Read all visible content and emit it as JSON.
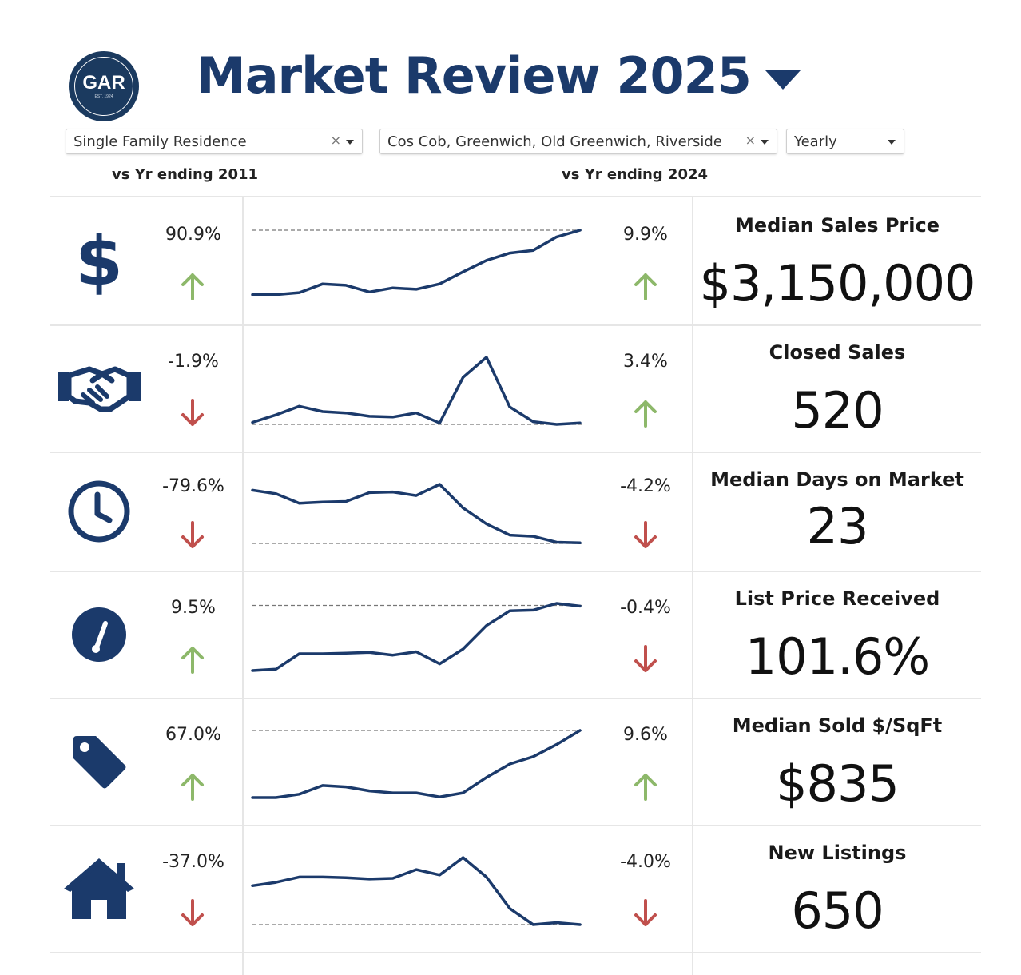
{
  "header": {
    "logo_text": "GAR",
    "logo_subtext": "EST. 1924",
    "title": "Market Review  2025"
  },
  "filters": {
    "property_type": "Single Family Residence",
    "areas": "Cos Cob, Greenwich, Old Greenwich, Riverside",
    "period": "Yearly",
    "clear_symbol": "×"
  },
  "compare": {
    "left_label": "vs Yr ending 2011",
    "right_label": "vs Yr ending 2024"
  },
  "colors": {
    "navy": "#1b3a6b",
    "up_green": "#8db86a",
    "down_red": "#c0504d"
  },
  "metrics": [
    {
      "label": "Median Sales Price",
      "value": "$3,150,000",
      "change_vs_2011": "90.9%",
      "dir_vs_2011": "up",
      "change_vs_2024": "9.9%",
      "dir_vs_2024": "up",
      "icon": "dollar-icon",
      "trend": [
        0.04,
        0.04,
        0.07,
        0.2,
        0.18,
        0.08,
        0.14,
        0.12,
        0.2,
        0.38,
        0.55,
        0.66,
        0.7,
        0.9,
        1.0
      ],
      "ref": 1.0
    },
    {
      "label": "Closed Sales",
      "value": "520",
      "change_vs_2011": "-1.9%",
      "dir_vs_2011": "down",
      "change_vs_2024": "3.4%",
      "dir_vs_2024": "up",
      "icon": "handshake-icon",
      "trend": [
        0.03,
        0.14,
        0.27,
        0.19,
        0.17,
        0.12,
        0.11,
        0.17,
        0.02,
        0.7,
        1.0,
        0.26,
        0.04,
        0.0,
        0.02
      ],
      "ref": 0.0
    },
    {
      "label": "Median Days on Market",
      "value": "23",
      "change_vs_2011": "-79.6%",
      "dir_vs_2011": "down",
      "change_vs_2024": "-4.2%",
      "dir_vs_2024": "down",
      "icon": "clock-icon",
      "trend": [
        0.9,
        0.84,
        0.68,
        0.7,
        0.71,
        0.86,
        0.87,
        0.81,
        1.0,
        0.6,
        0.33,
        0.14,
        0.12,
        0.02,
        0.01
      ],
      "ref": 0.0
    },
    {
      "label": "List Price Received",
      "value": "101.6%",
      "change_vs_2011": "9.5%",
      "dir_vs_2011": "up",
      "change_vs_2024": "-0.4%",
      "dir_vs_2024": "down",
      "icon": "gauge-icon",
      "trend": [
        0.0,
        0.02,
        0.25,
        0.25,
        0.26,
        0.27,
        0.23,
        0.28,
        0.1,
        0.32,
        0.67,
        0.89,
        0.9,
        1.0,
        0.96
      ],
      "ref": 0.97
    },
    {
      "label": "Median Sold $/SqFt",
      "value": "$835",
      "change_vs_2011": "67.0%",
      "dir_vs_2011": "up",
      "change_vs_2024": "9.6%",
      "dir_vs_2024": "up",
      "icon": "price-tag-icon",
      "trend": [
        0.0,
        0.0,
        0.05,
        0.18,
        0.16,
        0.1,
        0.07,
        0.07,
        0.01,
        0.07,
        0.3,
        0.5,
        0.61,
        0.79,
        1.0
      ],
      "ref": 1.0
    },
    {
      "label": "New Listings",
      "value": "650",
      "change_vs_2011": "-37.0%",
      "dir_vs_2011": "down",
      "change_vs_2024": "-4.0%",
      "dir_vs_2024": "down",
      "icon": "house-icon",
      "trend": [
        0.58,
        0.63,
        0.71,
        0.71,
        0.7,
        0.68,
        0.69,
        0.82,
        0.74,
        1.0,
        0.71,
        0.24,
        0.0,
        0.03,
        0.0
      ],
      "ref": 0.0
    }
  ]
}
